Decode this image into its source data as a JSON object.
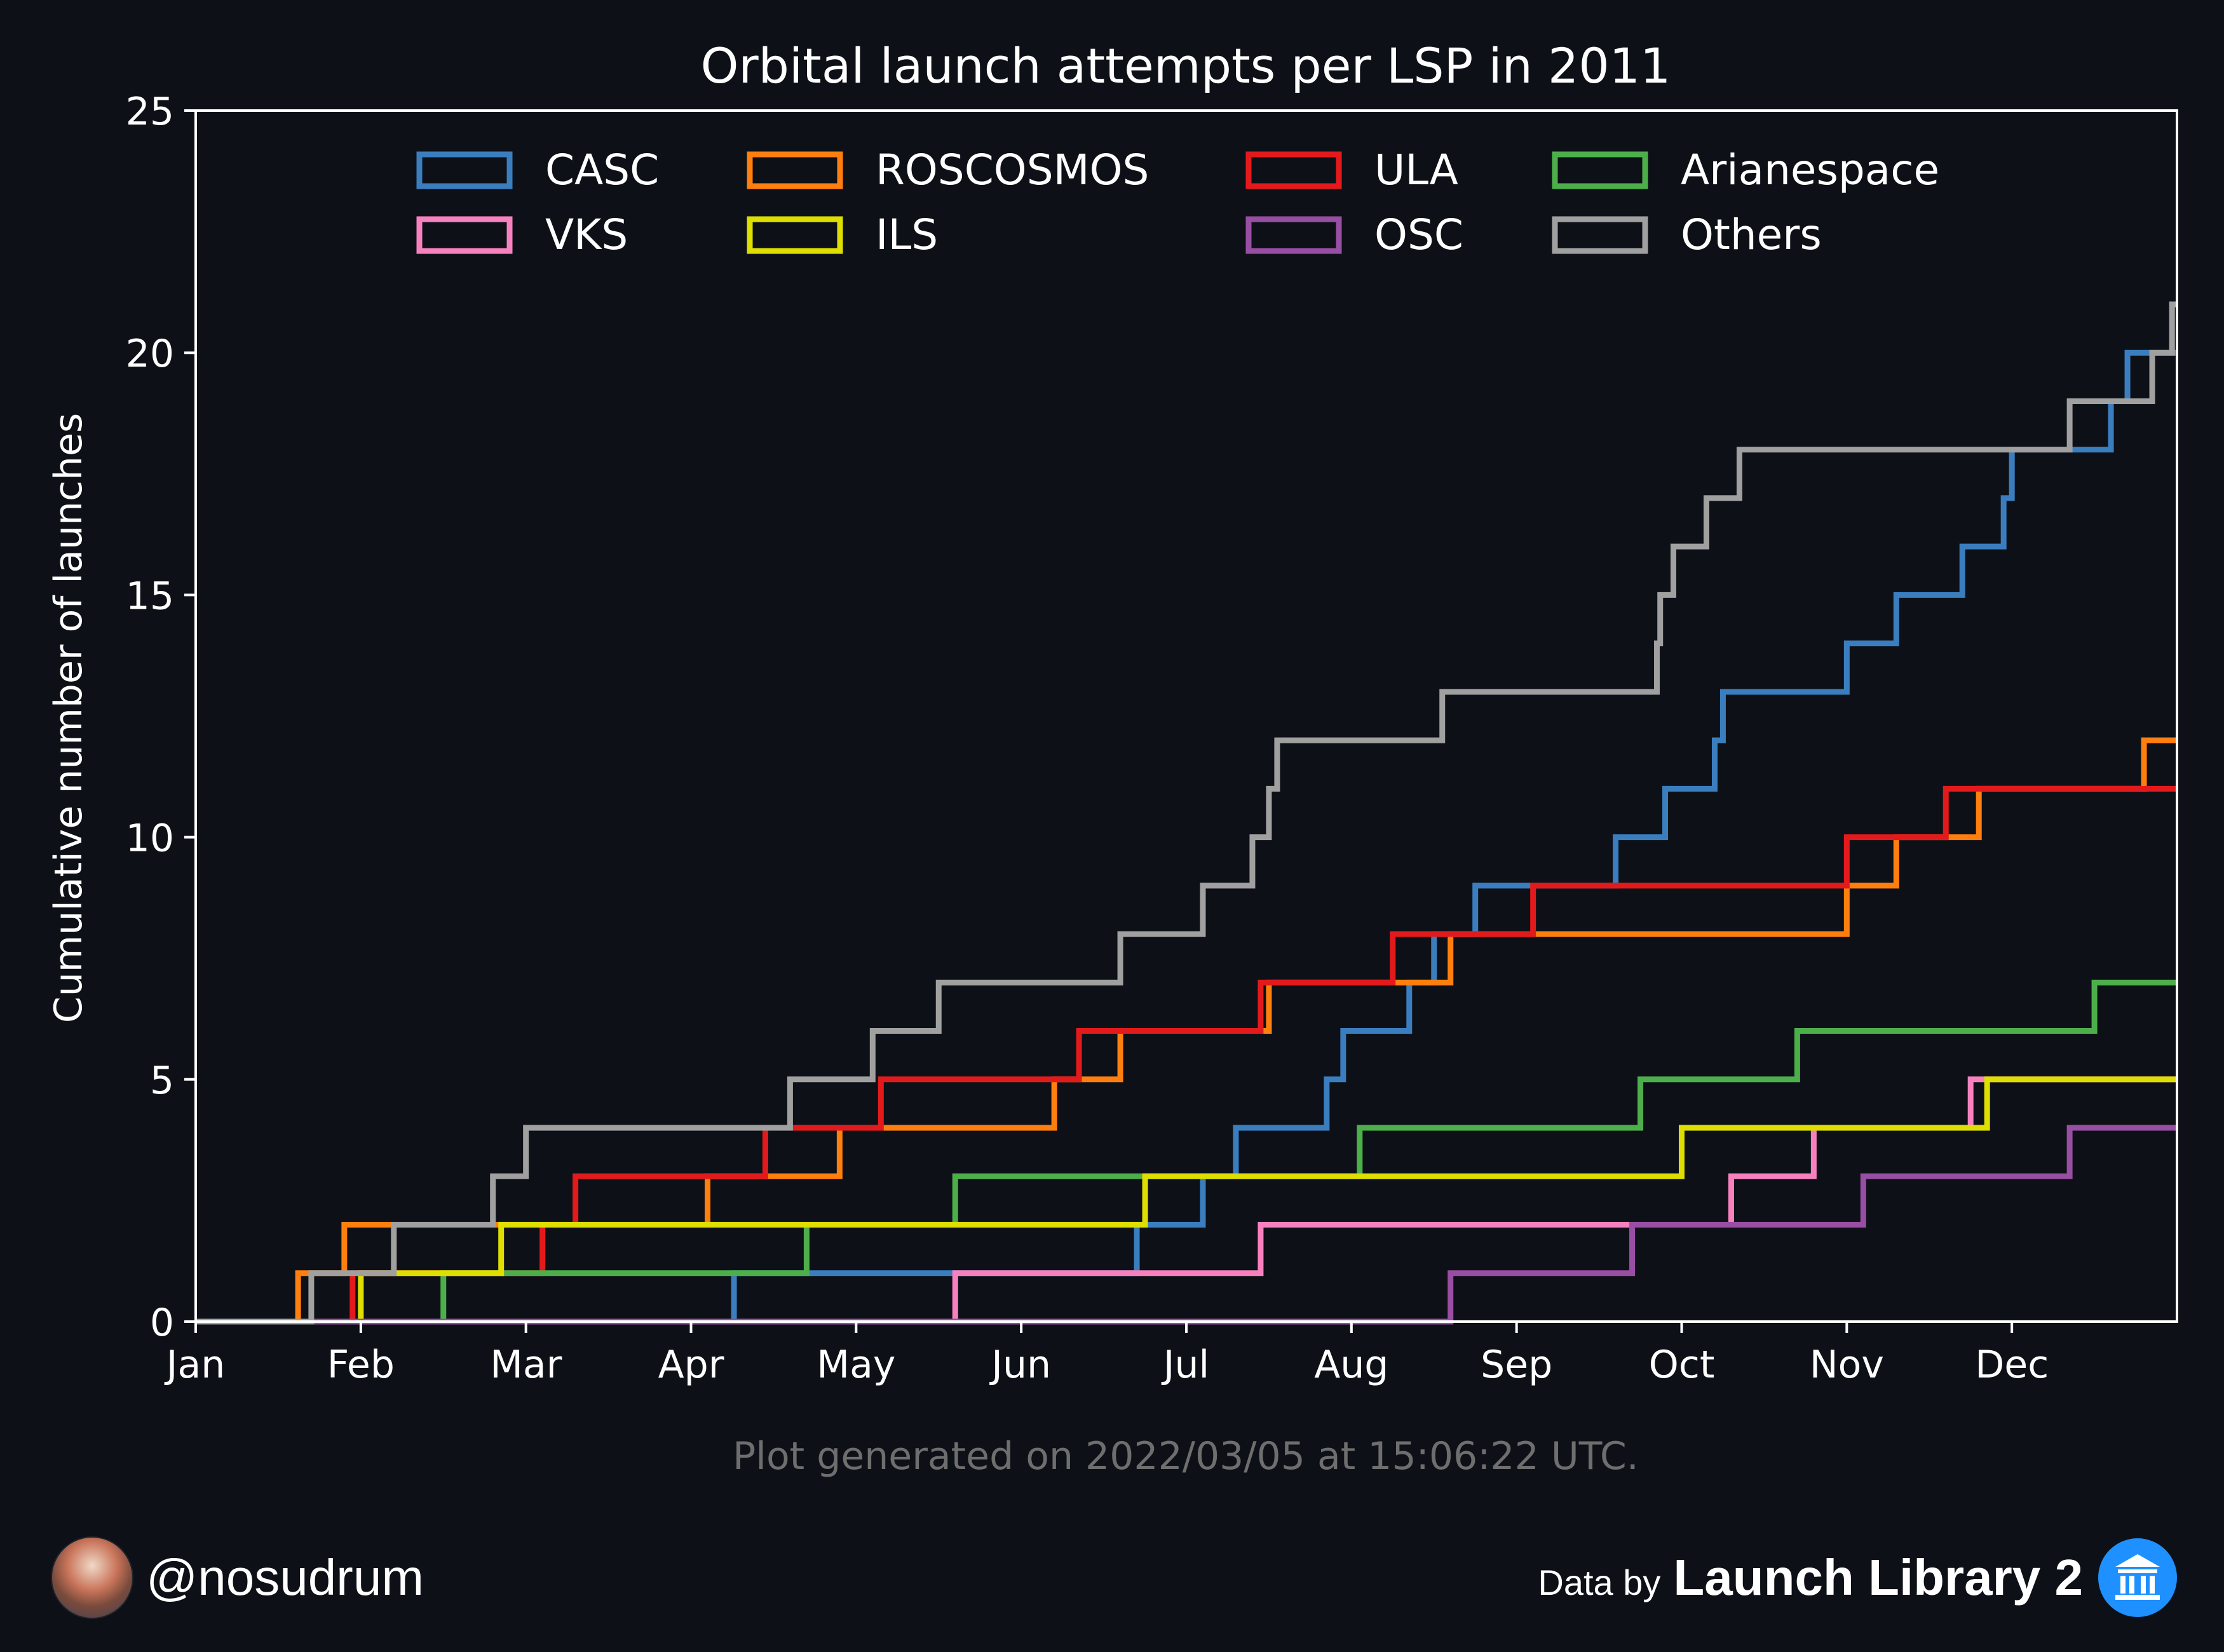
{
  "chart_data": {
    "type": "line",
    "step": true,
    "title": "Orbital launch attempts per LSP in 2011",
    "ylabel": "Cumulative number of launches",
    "xlabel": "",
    "ylim": [
      0,
      25
    ],
    "xlim": [
      0,
      12
    ],
    "x_unit": "months since 2011-01-01",
    "yticks": [
      0,
      5,
      10,
      15,
      20,
      25
    ],
    "xticks": [
      "Jan",
      "Feb",
      "Mar",
      "Apr",
      "May",
      "Jun",
      "Jul",
      "Aug",
      "Sep",
      "Oct",
      "Nov",
      "Dec"
    ],
    "grid": false,
    "legend_position": "top",
    "series": [
      {
        "name": "CASC",
        "color": "#3a7ebf",
        "points": [
          [
            0,
            0
          ],
          [
            3.26,
            1
          ],
          [
            5.7,
            2
          ],
          [
            6.1,
            3
          ],
          [
            6.3,
            4
          ],
          [
            6.85,
            5
          ],
          [
            6.95,
            6
          ],
          [
            7.35,
            7
          ],
          [
            7.5,
            8
          ],
          [
            7.75,
            9
          ],
          [
            8.6,
            10
          ],
          [
            8.9,
            11
          ],
          [
            9.2,
            12
          ],
          [
            9.25,
            13
          ],
          [
            10.0,
            14
          ],
          [
            10.3,
            15
          ],
          [
            10.7,
            16
          ],
          [
            10.95,
            17
          ],
          [
            11.0,
            18
          ],
          [
            11.6,
            19
          ],
          [
            11.7,
            20
          ]
        ]
      },
      {
        "name": "ROSCOSMOS",
        "color": "#ff7f0e",
        "points": [
          [
            0,
            0
          ],
          [
            0.62,
            1
          ],
          [
            0.9,
            2
          ],
          [
            3.1,
            3
          ],
          [
            3.9,
            4
          ],
          [
            5.2,
            5
          ],
          [
            5.6,
            6
          ],
          [
            6.5,
            7
          ],
          [
            7.6,
            8
          ],
          [
            10.0,
            9
          ],
          [
            10.3,
            10
          ],
          [
            10.8,
            11
          ],
          [
            11.8,
            12
          ]
        ]
      },
      {
        "name": "ULA",
        "color": "#e31a1c",
        "points": [
          [
            0,
            0
          ],
          [
            0.95,
            1
          ],
          [
            2.1,
            2
          ],
          [
            2.3,
            3
          ],
          [
            3.45,
            4
          ],
          [
            4.15,
            5
          ],
          [
            5.35,
            6
          ],
          [
            6.45,
            7
          ],
          [
            7.25,
            8
          ],
          [
            8.1,
            9
          ],
          [
            10.0,
            10
          ],
          [
            10.6,
            11
          ]
        ]
      },
      {
        "name": "Arianespace",
        "color": "#4daf4a",
        "points": [
          [
            0,
            0
          ],
          [
            1.5,
            1
          ],
          [
            3.7,
            2
          ],
          [
            4.6,
            3
          ],
          [
            7.05,
            4
          ],
          [
            8.75,
            5
          ],
          [
            9.7,
            6
          ],
          [
            11.5,
            7
          ]
        ]
      },
      {
        "name": "VKS",
        "color": "#f781bf",
        "points": [
          [
            0,
            0
          ],
          [
            4.6,
            1
          ],
          [
            6.45,
            2
          ],
          [
            9.3,
            3
          ],
          [
            9.8,
            4
          ],
          [
            10.75,
            5
          ]
        ]
      },
      {
        "name": "ILS",
        "color": "#dede00",
        "points": [
          [
            0,
            0
          ],
          [
            1.0,
            1
          ],
          [
            1.85,
            2
          ],
          [
            5.75,
            3
          ],
          [
            9.0,
            4
          ],
          [
            10.85,
            5
          ]
        ]
      },
      {
        "name": "OSC",
        "color": "#984ea3",
        "points": [
          [
            0,
            0
          ],
          [
            7.6,
            1
          ],
          [
            8.7,
            2
          ],
          [
            10.1,
            3
          ],
          [
            11.35,
            4
          ]
        ]
      },
      {
        "name": "Others",
        "color": "#a0a0a0",
        "points": [
          [
            0,
            0
          ],
          [
            0.7,
            1
          ],
          [
            1.2,
            2
          ],
          [
            1.8,
            3
          ],
          [
            2.0,
            4
          ],
          [
            3.6,
            5
          ],
          [
            4.1,
            6
          ],
          [
            4.5,
            7
          ],
          [
            5.6,
            8
          ],
          [
            6.1,
            9
          ],
          [
            6.4,
            10
          ],
          [
            6.5,
            11
          ],
          [
            6.55,
            12
          ],
          [
            7.55,
            13
          ],
          [
            8.85,
            14
          ],
          [
            8.87,
            15
          ],
          [
            8.95,
            16
          ],
          [
            9.15,
            17
          ],
          [
            9.35,
            18
          ],
          [
            11.35,
            19
          ],
          [
            11.85,
            20
          ],
          [
            11.97,
            21
          ]
        ]
      }
    ]
  },
  "footnote": "Plot generated on 2022/03/05 at 15:06:22 UTC.",
  "footer": {
    "handle": "@nosudrum",
    "data_by": "Data by",
    "source": "Launch Library 2"
  }
}
